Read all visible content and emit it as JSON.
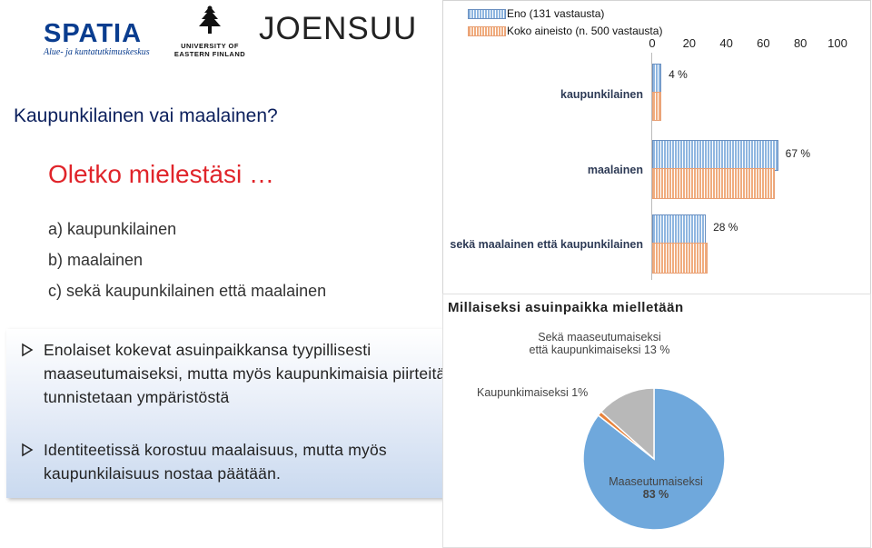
{
  "logos": {
    "spatia": {
      "word": "SPATIA",
      "sub": "Alue- ja kuntatutkimuskeskus"
    },
    "uef": {
      "line1": "UNIVERSITY OF",
      "line2": "EASTERN FINLAND"
    },
    "joensuu": {
      "word": "JOENSUU"
    }
  },
  "slide": {
    "title": "Kaupunkilainen vai maalainen?",
    "question": "Oletko mielestäsi …",
    "options": [
      "a)  kaupunkilainen",
      "b)  maalainen",
      "c)  sekä kaupunkilainen että maalainen"
    ],
    "bullets": [
      "Enolaiset kokevat asuinpaikkansa tyypillisesti maaseutumaiseksi, mutta myös kaupunkimaisia piirteitä tunnistetaan ympäristöstä",
      "Identiteetissä korostuu maalaisuus, mutta myös kaupunkilaisuus nostaa päätään."
    ]
  },
  "chart_data": [
    {
      "type": "bar",
      "orientation": "horizontal",
      "categories": [
        "kaupunkilainen",
        "maalainen",
        "sekä maalainen että kaupunkilainen"
      ],
      "series": [
        {
          "name": "Eno (131 vastausta)",
          "values": [
            4,
            67,
            28
          ],
          "color": "#8fb6e0"
        },
        {
          "name": "Koko aineisto (n. 500 vastausta)",
          "values": [
            4,
            65,
            29
          ],
          "color": "#f0ac7e"
        }
      ],
      "data_labels": [
        "4 %",
        "67 %",
        "28 %"
      ],
      "x_ticks": [
        "0",
        "20",
        "40",
        "60",
        "80",
        "100"
      ],
      "xlim": [
        0,
        100
      ],
      "legend": "top-left",
      "grid": false
    },
    {
      "type": "pie",
      "title": "Millaiseksi asuinpaikka mielletään",
      "slices": [
        {
          "label": "Maaseutumaiseksi",
          "value": 83,
          "value_label": "83 %",
          "color": "#6fa8dc"
        },
        {
          "label": "Kaupunkimaiseksi",
          "value": 1,
          "value_label": "1%",
          "color": "#e8823a"
        },
        {
          "label": "Sekä maaseutumaiseksi että kaupunkimaiseksi",
          "label_line1": "Sekä maaseutumaiseksi",
          "label_line2": "että kaupunkimaiseksi",
          "value": 13,
          "value_label": "13 %",
          "color": "#b8b8b8"
        }
      ]
    }
  ]
}
